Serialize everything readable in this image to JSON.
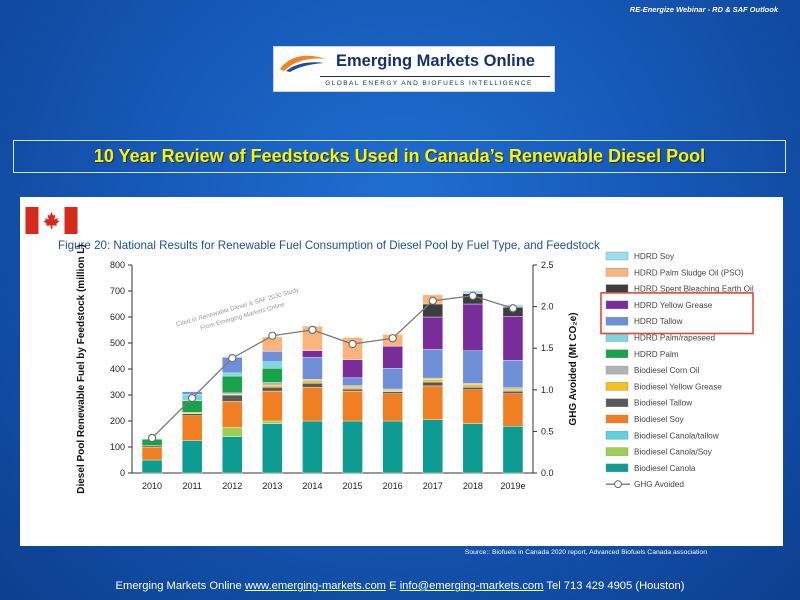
{
  "header": {
    "top_note": "RE-Energize Webinar - RD & SAF Outlook"
  },
  "logo": {
    "name": "Emerging Markets Online",
    "tagline": "GLOBAL ENERGY AND BIOFUELS INTELLIGENCE"
  },
  "slide_title": "10 Year Review of Feedstocks Used in Canada’s Renewable Diesel Pool",
  "figure_title": "Figure 20: National Results for Renewable Fuel Consumption of Diesel Pool by Fuel Type, and Feedstock",
  "watermark": [
    "Cited in Renewable Diesel & SAF 2030 Study",
    "From Emerging Markets Online"
  ],
  "source": "Source:: Biofuels in Canada 2020 report, Advanced Biofuels Canada association",
  "footer": {
    "prefix": "Emerging Markets Online ",
    "website": "www.emerging-markets.com",
    "mid": " E ",
    "email": "info@emerging-markets.com",
    "suffix": " Tel 713 429 4905 (Houston)"
  },
  "colors": {
    "highlight_box": "#e0473a",
    "title_text": "#fff200",
    "figure_title": "#1f4e9c"
  },
  "chart_data": {
    "type": "bar",
    "stacked": true,
    "categories": [
      "2010",
      "2011",
      "2012",
      "2013",
      "2014",
      "2015",
      "2016",
      "2017",
      "2018",
      "2019e"
    ],
    "ylabel": "Diesel Pool Renewable Fuel by Feedstock (million L)",
    "ylim": [
      0,
      800
    ],
    "yticks": [
      "0",
      "100",
      "200",
      "300",
      "400",
      "500",
      "600",
      "700",
      "800"
    ],
    "y2label": "GHG Avoided (Mt CO₂e)",
    "y2lim": [
      0,
      2.5
    ],
    "y2ticks": [
      "0.0",
      "0.5",
      "1.0",
      "1.5",
      "2.0",
      "2.5"
    ],
    "series": [
      {
        "name": "Biodiesel Canola",
        "color": "#0e9c92",
        "values": [
          50,
          125,
          140,
          190,
          200,
          200,
          200,
          205,
          190,
          180
        ]
      },
      {
        "name": "Biodiesel Canola/Soy",
        "color": "#9bcf53",
        "values": [
          0,
          0,
          35,
          10,
          0,
          0,
          0,
          0,
          0,
          0
        ]
      },
      {
        "name": "Biodiesel Canola/tallow",
        "color": "#5fd0e0",
        "values": [
          0,
          0,
          0,
          0,
          0,
          0,
          0,
          0,
          0,
          0
        ]
      },
      {
        "name": "Biodiesel Soy",
        "color": "#f07f23",
        "values": [
          50,
          95,
          100,
          115,
          130,
          115,
          105,
          130,
          130,
          125
        ]
      },
      {
        "name": "Biodiesel Tallow",
        "color": "#595959",
        "values": [
          5,
          8,
          25,
          15,
          15,
          8,
          8,
          15,
          10,
          10
        ]
      },
      {
        "name": "Biodiesel Yellow Grease",
        "color": "#f4c21a",
        "values": [
          0,
          5,
          3,
          8,
          10,
          8,
          5,
          10,
          10,
          8
        ]
      },
      {
        "name": "Biodiesel Corn Oil",
        "color": "#b2b2b2",
        "values": [
          0,
          0,
          5,
          10,
          5,
          5,
          5,
          5,
          5,
          5
        ]
      },
      {
        "name": "HDRD Palm",
        "color": "#17a24b",
        "values": [
          25,
          45,
          65,
          55,
          0,
          0,
          0,
          0,
          0,
          0
        ]
      },
      {
        "name": "HDRD Palm/rapeseed",
        "color": "#7fd6df",
        "values": [
          0,
          25,
          12,
          25,
          0,
          0,
          0,
          0,
          0,
          0
        ]
      },
      {
        "name": "HDRD Tallow",
        "color": "#6f8fd8",
        "values": [
          0,
          10,
          60,
          40,
          85,
          30,
          80,
          110,
          125,
          105
        ]
      },
      {
        "name": "HDRD Yellow Grease",
        "color": "#7a2d9a",
        "values": [
          0,
          0,
          0,
          0,
          25,
          70,
          85,
          125,
          180,
          170
        ]
      },
      {
        "name": "HDRD Spent Bleaching Earth Oil",
        "color": "#3d3d3d",
        "values": [
          0,
          0,
          0,
          0,
          0,
          0,
          0,
          50,
          40,
          35
        ]
      },
      {
        "name": "HDRD Palm Sludge Oil (PSO)",
        "color": "#fbb47c",
        "values": [
          0,
          0,
          0,
          55,
          95,
          85,
          45,
          35,
          0,
          0
        ]
      },
      {
        "name": "HDRD Soy",
        "color": "#9ae0ec",
        "values": [
          0,
          0,
          0,
          0,
          0,
          0,
          0,
          0,
          10,
          10
        ]
      }
    ],
    "line": {
      "name": "GHG Avoided",
      "axis": "right",
      "color": "#7a7a7a",
      "values": [
        0.42,
        0.9,
        1.38,
        1.65,
        1.72,
        1.55,
        1.62,
        2.07,
        2.13,
        1.98
      ]
    },
    "legend_position": "right",
    "legend_order": [
      "HDRD Soy",
      "HDRD Palm Sludge Oil (PSO)",
      "HDRD Spent Bleaching Earth Oil",
      "HDRD Yellow Grease",
      "HDRD Tallow",
      "HDRD Palm/rapeseed",
      "HDRD Palm",
      "Biodiesel Corn Oil",
      "Biodiesel Yellow Grease",
      "Biodiesel Tallow",
      "Biodiesel Soy",
      "Biodiesel Canola/tallow",
      "Biodiesel Canola/Soy",
      "Biodiesel Canola",
      "GHG Avoided"
    ],
    "highlighted_legend": [
      "HDRD Yellow Grease",
      "HDRD Tallow"
    ]
  }
}
